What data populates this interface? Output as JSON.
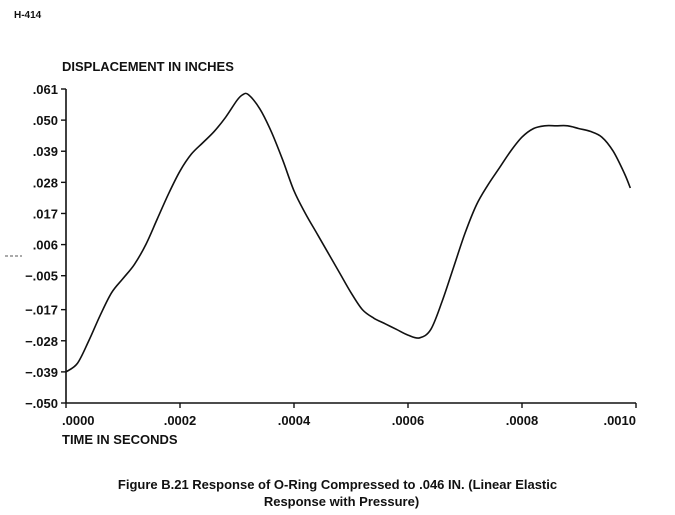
{
  "page_id": "H-414",
  "caption": {
    "line1": "Figure B.21 Response of O-Ring Compressed to .046 IN. (Linear Elastic",
    "line2": "Response with Pressure)"
  },
  "chart_data": {
    "type": "line",
    "title": "",
    "ylabel": "DISPLACEMENT IN INCHES",
    "xlabel": "TIME IN SECONDS",
    "xlim": [
      0,
      0.001
    ],
    "ylim": [
      -0.05,
      0.061
    ],
    "x_ticks": [
      {
        "value": 0.0,
        "label": ".0000"
      },
      {
        "value": 0.0002,
        "label": ".0002"
      },
      {
        "value": 0.0004,
        "label": ".0004"
      },
      {
        "value": 0.0006,
        "label": ".0006"
      },
      {
        "value": 0.0008,
        "label": ".0008"
      },
      {
        "value": 0.001,
        "label": ".0010"
      }
    ],
    "y_ticks": [
      {
        "value": 0.061,
        "label": ".061"
      },
      {
        "value": 0.05,
        "label": ".050"
      },
      {
        "value": 0.039,
        "label": ".039"
      },
      {
        "value": 0.028,
        "label": ".028"
      },
      {
        "value": 0.017,
        "label": ".017"
      },
      {
        "value": 0.006,
        "label": ".006"
      },
      {
        "value": -0.005,
        "label": "-.005"
      },
      {
        "value": -0.017,
        "label": "-.017"
      },
      {
        "value": -0.028,
        "label": "-.028"
      },
      {
        "value": -0.039,
        "label": "-.039"
      },
      {
        "value": -0.05,
        "label": "-.050"
      }
    ],
    "grid": false,
    "series": [
      {
        "color": "#111111",
        "x": [
          0.0,
          2e-05,
          4e-05,
          6e-05,
          8e-05,
          0.0001,
          0.00012,
          0.00014,
          0.00016,
          0.00018,
          0.0002,
          0.00022,
          0.00024,
          0.00026,
          0.00028,
          0.0003,
          0.00031,
          0.00032,
          0.00034,
          0.00036,
          0.00038,
          0.0004,
          0.00042,
          0.00044,
          0.00046,
          0.00048,
          0.0005,
          0.00052,
          0.00054,
          0.00056,
          0.00058,
          0.0006,
          0.00062,
          0.00064,
          0.00066,
          0.00068,
          0.0007,
          0.00072,
          0.00074,
          0.00076,
          0.00078,
          0.0008,
          0.00082,
          0.00084,
          0.00086,
          0.00088,
          0.0009,
          0.00092,
          0.00094,
          0.00096,
          0.00098,
          0.00099
        ],
        "y": [
          -0.039,
          -0.036,
          -0.028,
          -0.019,
          -0.011,
          -0.006,
          -0.001,
          0.006,
          0.015,
          0.024,
          0.032,
          0.038,
          0.042,
          0.046,
          0.051,
          0.057,
          0.059,
          0.059,
          0.054,
          0.046,
          0.036,
          0.025,
          0.017,
          0.01,
          0.003,
          -0.004,
          -0.011,
          -0.017,
          -0.02,
          -0.022,
          -0.024,
          -0.026,
          -0.027,
          -0.024,
          -0.014,
          -0.002,
          0.01,
          0.02,
          0.027,
          0.033,
          0.039,
          0.044,
          0.047,
          0.048,
          0.048,
          0.048,
          0.047,
          0.046,
          0.044,
          0.039,
          0.031,
          0.026
        ]
      }
    ]
  }
}
